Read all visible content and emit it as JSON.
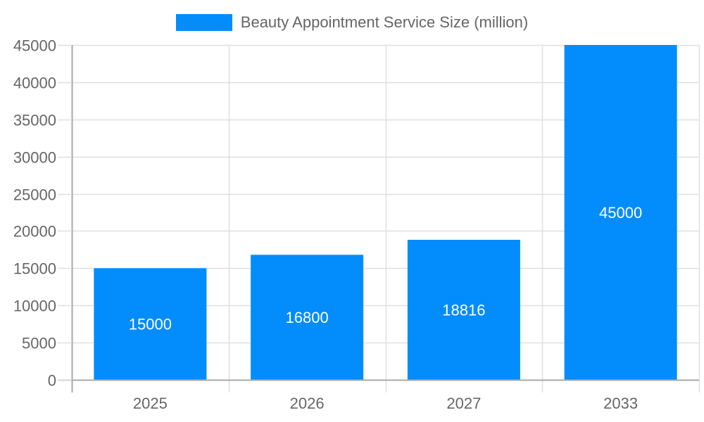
{
  "chart_data": {
    "type": "bar",
    "title": "",
    "categories": [
      "2025",
      "2026",
      "2027",
      "2033"
    ],
    "series": [
      {
        "name": "Beauty Appointment Service Size (million)",
        "values": [
          15000,
          16800,
          18816,
          45000
        ],
        "color": "#038cfc"
      }
    ],
    "values": [
      15000,
      16800,
      18816,
      45000
    ],
    "data_labels": [
      "15000",
      "16800",
      "18816",
      "45000"
    ],
    "xlabel": "",
    "ylabel": "",
    "ylim": [
      0,
      45000
    ],
    "yticks": [
      0,
      5000,
      10000,
      15000,
      20000,
      25000,
      30000,
      35000,
      40000,
      45000
    ],
    "grid": true,
    "legend_position": "top"
  },
  "legend": {
    "label": "Beauty Appointment Service Size (million)",
    "color": "#038cfc"
  },
  "colors": {
    "bar": "#038cfc",
    "grid": "#e0e0e0",
    "axis": "#a8a8a8",
    "text": "#666666"
  }
}
